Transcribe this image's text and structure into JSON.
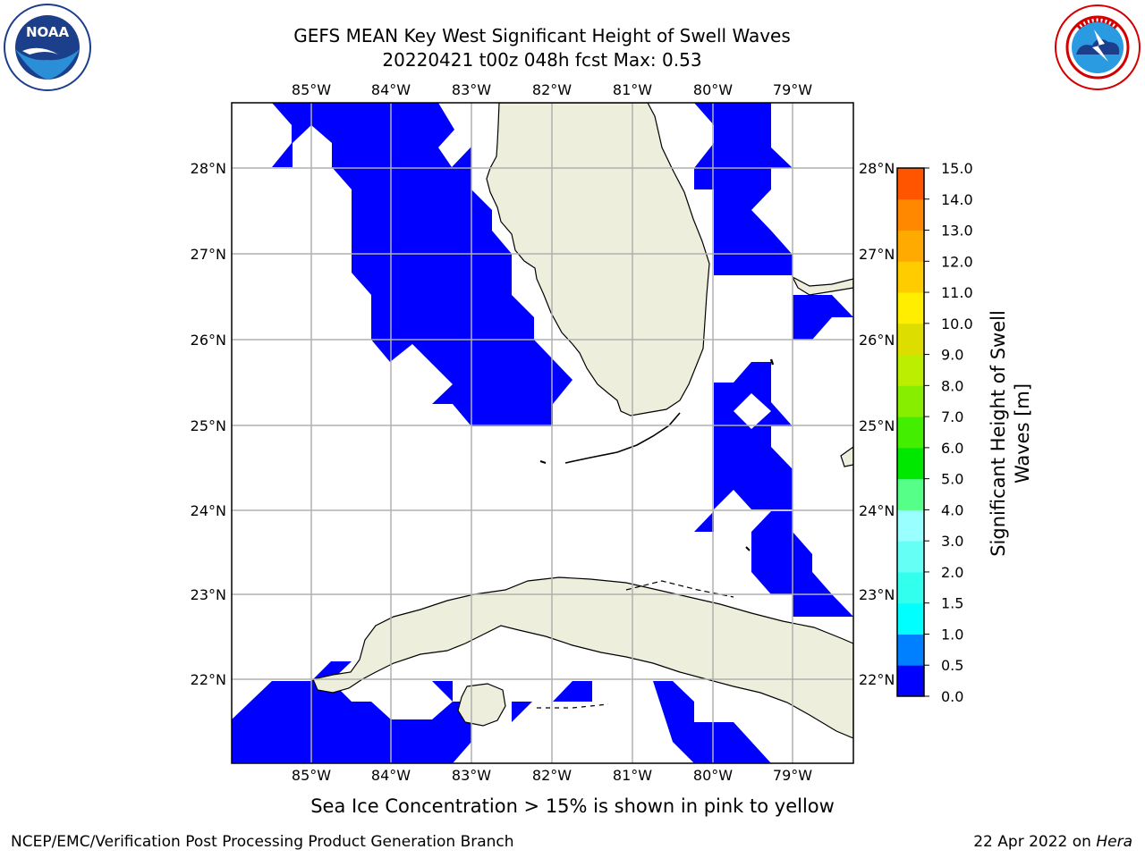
{
  "title": {
    "line1": "GEFS MEAN Key West Significant Height of Swell Waves",
    "line2": "20220421 t00z 048h fcst   Max: 0.53"
  },
  "logos": {
    "left": {
      "text": "NOAA",
      "ring_text": "NATIONAL OCEANIC AND ATMOSPHERIC ADMINISTRATION · U.S. DEPARTMENT OF COMMERCE",
      "color": "#1b3f8b"
    },
    "right": {
      "ring_text": "NATIONAL WEATHER SERVICE",
      "color": "#d40000"
    }
  },
  "map": {
    "lon_labels": [
      "85°W",
      "84°W",
      "83°W",
      "82°W",
      "81°W",
      "80°W",
      "79°W"
    ],
    "lat_labels": [
      "28°N",
      "27°N",
      "26°N",
      "25°N",
      "24°N",
      "23°N",
      "22°N"
    ],
    "land_color": "#eeeedd",
    "ocean_color": "#ffffff",
    "swell_color": "#0000ff",
    "grid_color": "#b0b0b0"
  },
  "colorbar": {
    "label": "Significant Height of Swell Waves [m]",
    "label_line1": "Significant Height of Swell",
    "label_line2": "Waves [m]",
    "ticks": [
      "0.0",
      "0.5",
      "1.0",
      "1.5",
      "2.0",
      "3.0",
      "4.0",
      "5.0",
      "6.0",
      "7.0",
      "8.0",
      "9.0",
      "10.0",
      "11.0",
      "12.0",
      "13.0",
      "14.0",
      "15.0"
    ],
    "colors": [
      "#0000ff",
      "#0080ff",
      "#00ffff",
      "#33ffee",
      "#66fff6",
      "#99ffff",
      "#55ff88",
      "#00e800",
      "#44ee00",
      "#88ee00",
      "#bbee00",
      "#dddd00",
      "#ffee00",
      "#ffcc00",
      "#ffaa00",
      "#ff8800",
      "#ff5500",
      "#ff2200",
      "#ff0000"
    ]
  },
  "note": "Sea Ice Concentration > 15% is shown in pink to yellow",
  "footer": {
    "left": "NCEP/EMC/Verification Post Processing Product Generation Branch",
    "right_date": "22 Apr 2022 on ",
    "right_host": "Hera"
  }
}
